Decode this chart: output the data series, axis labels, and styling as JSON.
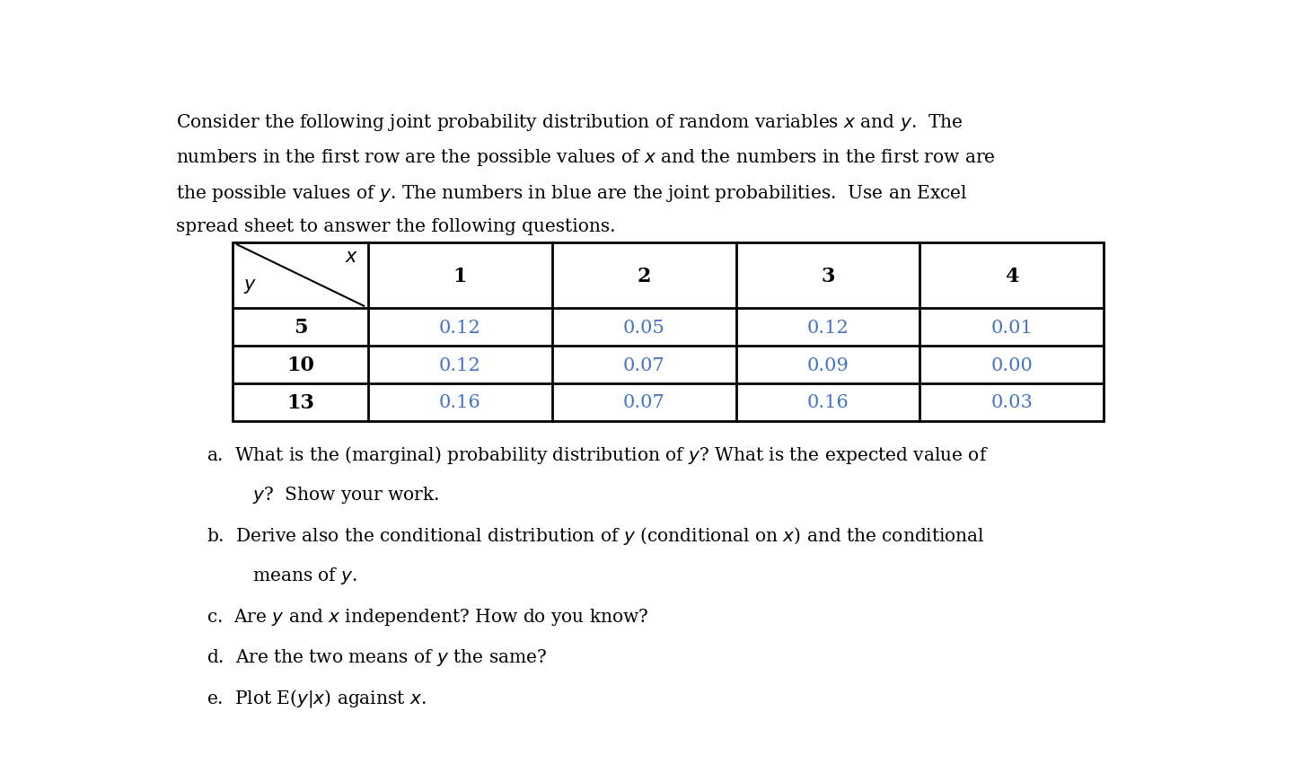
{
  "para_lines": [
    "Consider the following joint probability distribution of random variables $x$ and $y$.  The",
    "numbers in the first row are the possible values of $x$ and the numbers in the first row are",
    "the possible values of $y$. The numbers in blue are the joint probabilities.  Use an Excel",
    "spread sheet to answer the following questions."
  ],
  "x_values": [
    "1",
    "2",
    "3",
    "4"
  ],
  "y_values": [
    "5",
    "10",
    "13"
  ],
  "probabilities": [
    [
      "0.12",
      "0.05",
      "0.12",
      "0.01"
    ],
    [
      "0.12",
      "0.07",
      "0.09",
      "0.00"
    ],
    [
      "0.16",
      "0.07",
      "0.16",
      "0.03"
    ]
  ],
  "blue_color": "#4472C4",
  "black_color": "#000000",
  "q_lines": [
    [
      "a.",
      "  What is the (marginal) probability distribution of $y$? What is the expected value of"
    ],
    [
      "",
      "        $y$?  Show your work."
    ],
    [
      "b.",
      "  Derive also the conditional distribution of $y$ (conditional on $x$) and the conditional"
    ],
    [
      "",
      "        means of $y$."
    ],
    [
      "c.",
      "  Are $y$ and $x$ independent? How do you know?"
    ],
    [
      "d.",
      "  Are the two means of $y$ the same?"
    ],
    [
      "e.",
      "  Plot E($y|x$) against $x$."
    ]
  ],
  "font_size": 14.5,
  "table_font_size": 15.0
}
